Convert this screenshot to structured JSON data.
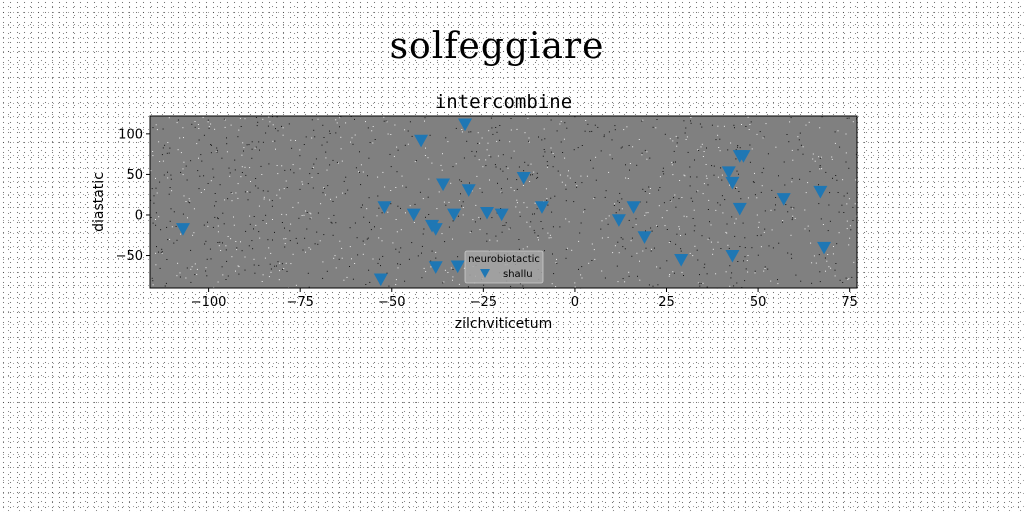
{
  "suptitle": "solfeggiare",
  "chart_data": {
    "type": "scatter",
    "title": "intercombine",
    "xlabel": "zilchviticetum",
    "ylabel": "diastatic",
    "xlim": [
      -116,
      77
    ],
    "ylim": [
      -90,
      122
    ],
    "xticks": [
      -100,
      -75,
      -50,
      -25,
      0,
      25,
      50,
      75
    ],
    "xtick_labels": [
      "−100",
      "−75",
      "−50",
      "−25",
      "0",
      "25",
      "50",
      "75"
    ],
    "yticks": [
      -50,
      0,
      50,
      100
    ],
    "ytick_labels": [
      "−50",
      "0",
      "50",
      "100"
    ],
    "grid": false,
    "background_color": "#808080",
    "legend": {
      "title": "neurobiotactic",
      "placement": "lower center",
      "entries": [
        "shallu"
      ]
    },
    "series": [
      {
        "name": "shallu",
        "marker": "triangle-down",
        "color": "#1f77b4",
        "x": [
          -107,
          -53,
          -52,
          -44,
          -42,
          -39,
          -38,
          -38,
          -36,
          -33,
          -32,
          -29,
          -30,
          -24,
          -20,
          -14,
          -9,
          12,
          16,
          19,
          29,
          43,
          42,
          43,
          45,
          45,
          46,
          57,
          67,
          68
        ],
        "y": [
          -17,
          -79,
          10,
          1,
          92,
          -13,
          -17,
          -64,
          38,
          1,
          -63,
          31,
          112,
          3,
          1,
          46,
          10,
          -6,
          10,
          -27,
          -55,
          40,
          53,
          -50,
          8,
          73,
          73,
          20,
          29,
          -40
        ]
      }
    ]
  }
}
